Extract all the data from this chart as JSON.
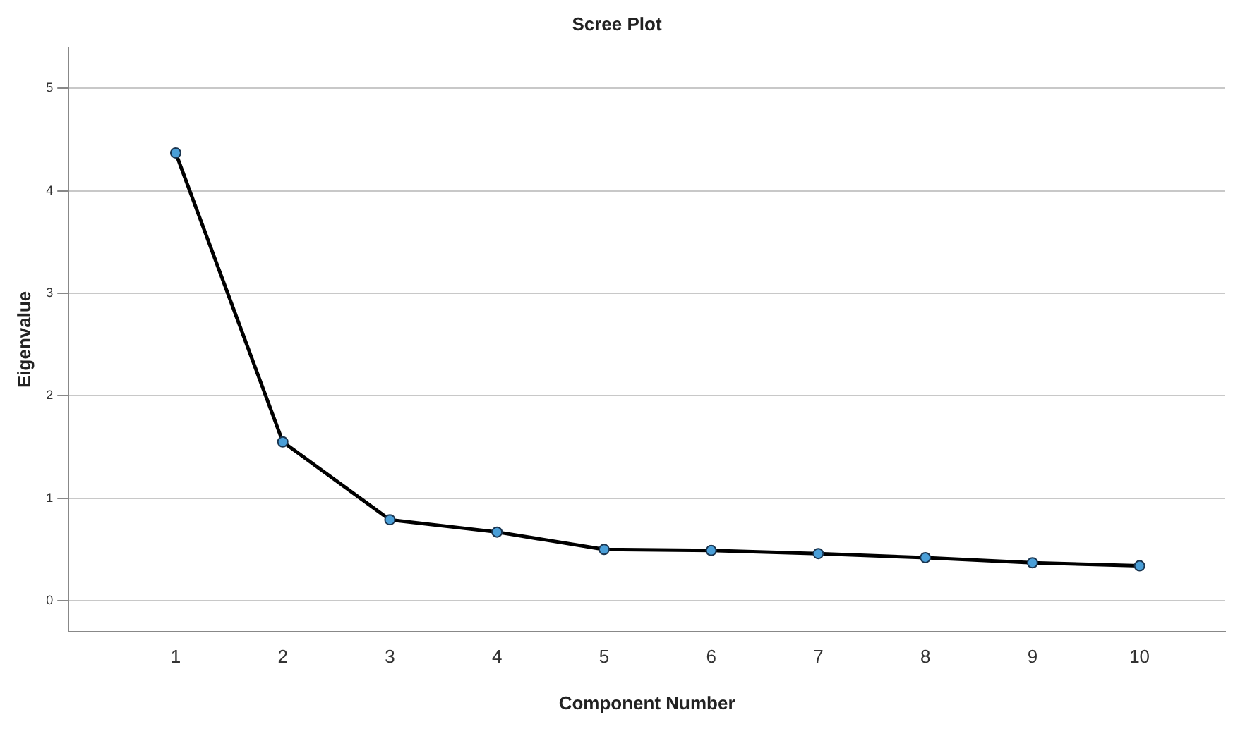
{
  "chart_data": {
    "type": "line",
    "title": "Scree Plot",
    "xlabel": "Component Number",
    "ylabel": "Eigenvalue",
    "x": [
      1,
      2,
      3,
      4,
      5,
      6,
      7,
      8,
      9,
      10
    ],
    "series": [
      {
        "color": "#000000",
        "colors": [
          "#4a9fd8",
          "#4a9fd8",
          "#4a9fd8",
          "#4a9fd8",
          "#4a9fd8",
          "#4a9fd8",
          "#4a9fd8",
          "#4a9fd8",
          "#4a9fd8",
          "#4a9fd8"
        ],
        "values": [
          4.37,
          1.55,
          0.79,
          0.67,
          0.5,
          0.49,
          0.46,
          0.42,
          0.37,
          0.34
        ]
      }
    ],
    "xlim": [
      0,
      10.8
    ],
    "xticks": [
      1,
      2,
      3,
      4,
      5,
      6,
      7,
      8,
      9,
      10
    ],
    "ylim": [
      -0.3,
      5.4
    ],
    "yticks": [
      0,
      1,
      2,
      3,
      4,
      5
    ],
    "grid": "y",
    "legend": false,
    "marker": "circle",
    "line_style": "solid"
  }
}
